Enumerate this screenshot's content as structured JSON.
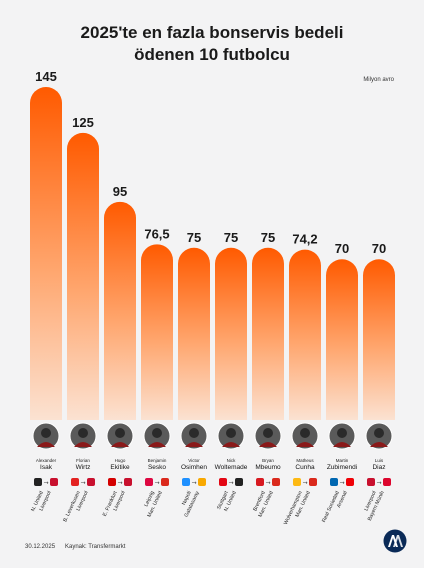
{
  "title_line1": "2025'te en fazla bonservis bedeli",
  "title_line2": "ödenen 10 futbolcu",
  "unit_label": "Milyon avro",
  "footer": {
    "date": "30.12.2025",
    "source": "Kaynak: Transfermarkt"
  },
  "colors": {
    "bar_top": "#ff5a00",
    "bar_bottom": "#fbe2d2",
    "background": "#f3f3f4"
  },
  "chart_data": {
    "type": "bar",
    "categories": [
      "Alexander Isak",
      "Florian Wirtz",
      "Hugo Ekitike",
      "Benjamin Sesko",
      "Victor Osimhen",
      "Nick Woltemade",
      "Bryan Mbeumo",
      "Matheus Cunha",
      "Martin Zubimendi",
      "Luis Diaz"
    ],
    "values": [
      145,
      125,
      95,
      76.5,
      75,
      75,
      75,
      74.2,
      70,
      70
    ],
    "value_labels": [
      "145",
      "125",
      "95",
      "76,5",
      "75",
      "75",
      "75",
      "74,2",
      "70",
      "70"
    ],
    "players": [
      {
        "first": "Alexander",
        "last": "Isak",
        "from": "N. United",
        "to": "Liverpool"
      },
      {
        "first": "Florian",
        "last": "Wirtz",
        "from": "B. Leverkusen",
        "to": "Liverpool"
      },
      {
        "first": "Hugo",
        "last": "Ekitike",
        "from": "E. Frankfurt",
        "to": "Liverpool"
      },
      {
        "first": "Benjamin",
        "last": "Sesko",
        "from": "Leipzig",
        "to": "Man. United"
      },
      {
        "first": "Victor",
        "last": "Osimhen",
        "from": "Napoli",
        "to": "Galatasaray"
      },
      {
        "first": "Nick",
        "last": "Woltemade",
        "from": "Stuttgart",
        "to": "N. United"
      },
      {
        "first": "Bryan",
        "last": "Mbeumo",
        "from": "Brentford",
        "to": "Man. United"
      },
      {
        "first": "Matheus",
        "last": "Cunha",
        "from": "Wolverhampton",
        "to": "Man. United"
      },
      {
        "first": "Martin",
        "last": "Zubimendi",
        "from": "Real Sociedad",
        "to": "Arsenal"
      },
      {
        "first": "Luis",
        "last": "Diaz",
        "from": "Liverpool",
        "to": "Bayern Münih"
      }
    ],
    "title": "2025'te en fazla bonservis bedeli ödenen 10 futbolcu",
    "ylabel": "Milyon avro",
    "ylim": [
      0,
      145
    ],
    "grid": false,
    "legend": "none"
  }
}
